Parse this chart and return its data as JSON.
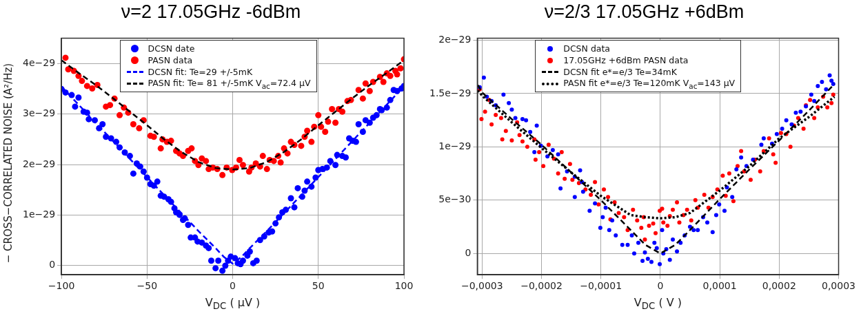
{
  "chart_data": [
    {
      "type": "scatter",
      "title": "ν=2  17.05GHz  -6dBm",
      "xlabel": "V$_{DC}$ ( µV )",
      "ylabel": "− CROSS−CORRELATED NOISE (A²/Hz)",
      "legend": "top left",
      "grid": true,
      "xlim": [
        -100,
        100
      ],
      "xticks": [
        {
          "value": -100,
          "label": "−100"
        },
        {
          "value": -50,
          "label": "−50"
        },
        0,
        50,
        100
      ],
      "ylim": [
        -1.9e-30,
        4.51e-29
      ],
      "yticks": [
        0,
        {
          "value": 1e-29,
          "label": "1e−29"
        },
        {
          "value": 2e-29,
          "label": "2e−29"
        },
        {
          "value": 3e-29,
          "label": "3e−29"
        },
        {
          "value": 4e-29,
          "label": "4e−29"
        }
      ],
      "series": [
        {
          "name": "DCSN date",
          "marker": "circle",
          "color": "#0000ff",
          "x": [
            -100,
            -97.6,
            -94,
            -92,
            -90,
            -87,
            -85,
            -84,
            -80.5,
            -78,
            -76,
            -74,
            -71,
            -68,
            -66,
            -63,
            -60,
            -58,
            -56,
            -54,
            -52,
            -50,
            -48,
            -46,
            -44,
            -42,
            -40,
            -37.5,
            -36,
            -34,
            -33,
            -31,
            -29,
            -28,
            -26,
            -24.5,
            -22,
            -20.5,
            -18,
            -15.6,
            -14,
            -12.5,
            -10,
            -8.4,
            -6,
            -4.3,
            -2.7,
            -1.1,
            1.4,
            3,
            4.6,
            6,
            8.6,
            10,
            12,
            14,
            16,
            18.4,
            21,
            23,
            25,
            27,
            29,
            31,
            34,
            36,
            38,
            40.6,
            42,
            43.5,
            46,
            48.4,
            50,
            52.4,
            55,
            57,
            60,
            61,
            64,
            66,
            68,
            70,
            72,
            73.5,
            76,
            77.6,
            80,
            82,
            84,
            86,
            87,
            90,
            92,
            94,
            96,
            98.6,
            100
          ],
          "values": [
            3.5e-29,
            3.43e-29,
            3.38e-29,
            3.15e-29,
            3.33e-29,
            3.05e-29,
            3.03e-29,
            2.9e-29,
            2.88e-29,
            2.72e-29,
            2.8e-29,
            2.55e-29,
            2.52e-29,
            2.45e-29,
            2.34e-29,
            2.24e-29,
            2.17e-29,
            1.82e-29,
            2.02e-29,
            1.96e-29,
            1.86e-29,
            1.74e-29,
            1.61e-29,
            1.58e-29,
            1.66e-29,
            1.38e-29,
            1.36e-29,
            1.31e-29,
            1.26e-29,
            1.13e-29,
            1.05e-29,
            1e-29,
            9e-30,
            9.3e-30,
            8e-30,
            5.5e-30,
            5.5e-30,
            4.7e-30,
            4.5e-30,
            3.9e-30,
            3.4e-30,
            9e-31,
            -6e-31,
            9e-31,
            -1.1e-30,
            -1e-31,
            9e-31,
            1.7e-30,
            1.4e-30,
            4e-31,
            2e-31,
            9e-31,
            1.9e-30,
            2.7e-30,
            4e-31,
            9e-31,
            5e-30,
            5.7e-30,
            6.5e-30,
            6.7e-30,
            8.3e-30,
            9.5e-30,
            1.05e-29,
            1.1e-29,
            1.33e-29,
            1.15e-29,
            1.53e-29,
            1.36e-29,
            1.48e-29,
            1.66e-29,
            1.56e-29,
            1.74e-29,
            1.89e-29,
            1.91e-29,
            1.94e-29,
            2.07e-29,
            1.99e-29,
            2.19e-29,
            2.17e-29,
            2.14e-29,
            2.52e-29,
            2.47e-29,
            2.45e-29,
            2.8e-29,
            2.65e-29,
            2.88e-29,
            2.83e-29,
            2.93e-29,
            2.98e-29,
            3.1e-29,
            3.08e-29,
            3.13e-29,
            3.28e-29,
            3.48e-29,
            3.46e-29,
            3.51e-29,
            3.56e-29
          ]
        },
        {
          "name": "PASN data",
          "marker": "circle",
          "color": "#ff0000",
          "x": [
            -97.6,
            -96,
            -92.7,
            -90,
            -88,
            -85,
            -82,
            -79,
            -74,
            -71.6,
            -69,
            -66,
            -63.5,
            -61,
            -58,
            -54.6,
            -52,
            -48,
            -46,
            -42,
            -41,
            -38.4,
            -36,
            -33,
            -31,
            -29,
            -26,
            -24,
            -22,
            -20,
            -18,
            -15.6,
            -14,
            -11.6,
            -9,
            -6,
            -3.5,
            -0.3,
            2,
            4,
            6,
            9.6,
            11,
            13.5,
            16,
            17.6,
            20,
            21.6,
            24,
            26.6,
            28,
            30,
            32,
            34,
            36,
            40,
            42,
            43.5,
            46,
            47.6,
            50,
            51.6,
            54,
            55.7,
            58,
            60,
            62,
            64,
            67,
            69,
            73.5,
            76,
            77.6,
            80,
            82,
            86,
            88,
            90,
            92,
            95,
            96,
            98,
            100
          ],
          "values": [
            4.12e-29,
            3.89e-29,
            3.86e-29,
            3.76e-29,
            3.66e-29,
            3.56e-29,
            3.51e-29,
            3.58e-29,
            3.15e-29,
            3.18e-29,
            3.31e-29,
            2.98e-29,
            3.13e-29,
            3.03e-29,
            2.8e-29,
            2.72e-29,
            2.88e-29,
            2.57e-29,
            2.55e-29,
            2.32e-29,
            2.5e-29,
            2.45e-29,
            2.47e-29,
            2.27e-29,
            2.22e-29,
            2.17e-29,
            2.27e-29,
            2.32e-29,
            2.07e-29,
            1.99e-29,
            2.12e-29,
            2.07e-29,
            1.91e-29,
            1.94e-29,
            1.91e-29,
            1.79e-29,
            1.94e-29,
            1.89e-29,
            1.94e-29,
            2.09e-29,
            1.99e-29,
            1.86e-29,
            1.94e-29,
            2.02e-29,
            1.96e-29,
            2.17e-29,
            1.91e-29,
            2.09e-29,
            2.07e-29,
            2.17e-29,
            2.04e-29,
            2.32e-29,
            2.22e-29,
            2.45e-29,
            2.39e-29,
            2.37e-29,
            2.55e-29,
            2.67e-29,
            2.45e-29,
            2.75e-29,
            2.98e-29,
            2.75e-29,
            2.65e-29,
            2.85e-29,
            3.1e-29,
            2.83e-29,
            3.1e-29,
            3.05e-29,
            3.26e-29,
            3.28e-29,
            3.48e-29,
            3.31e-29,
            3.61e-29,
            3.46e-29,
            3.64e-29,
            3.74e-29,
            3.64e-29,
            3.81e-29,
            3.76e-29,
            3.86e-29,
            3.79e-29,
            3.91e-29,
            4.09e-29
          ]
        },
        {
          "name": "DCSN fit: Te=29 +/-5mK",
          "type": "line",
          "marker": "none",
          "line_style": "dashed",
          "color": "#0000ff",
          "x": [
            -100,
            -80,
            -60,
            -40,
            -20,
            -10,
            -5,
            0,
            5,
            10,
            20,
            40,
            60,
            80,
            100
          ],
          "values": [
            3.55e-29,
            2.83e-29,
            2.11e-29,
            1.39e-29,
            6.8e-30,
            3.4e-30,
            1.6e-30,
            3e-31,
            1.6e-30,
            3.4e-30,
            6.8e-30,
            1.39e-29,
            2.11e-29,
            2.83e-29,
            3.55e-29
          ]
        },
        {
          "name": "PASN fit: Te= 81 +/-5mK V$_{ac}$=72.4 µV",
          "type": "line",
          "marker": "none",
          "line_style": "dashed",
          "color": "#000000",
          "x": [
            -100,
            -90,
            -80,
            -70,
            -60,
            -50,
            -40,
            -30,
            -20,
            -10,
            0,
            10,
            20,
            30,
            40,
            50,
            60,
            70,
            80,
            90,
            100
          ],
          "values": [
            4.07e-29,
            3.82e-29,
            3.58e-29,
            3.32e-29,
            3.05e-29,
            2.78e-29,
            2.5e-29,
            2.25e-29,
            2.05e-29,
            1.93e-29,
            1.9e-29,
            1.93e-29,
            2.05e-29,
            2.25e-29,
            2.5e-29,
            2.78e-29,
            3.05e-29,
            3.32e-29,
            3.58e-29,
            3.82e-29,
            4.07e-29
          ]
        }
      ]
    },
    {
      "type": "scatter",
      "title": "ν=2/3  17.05GHz  +6dBm",
      "xlabel": "V$_{DC}$ ( V )",
      "legend": "top left",
      "grid": true,
      "xlim": [
        -0.000308,
        0.0003
      ],
      "xticks": [
        {
          "value": -0.0003,
          "label": "−0,0003"
        },
        {
          "value": -0.0002,
          "label": "−0,0002"
        },
        {
          "value": -0.0001,
          "label": "−0,0001"
        },
        0,
        {
          "value": 0.0001,
          "label": "0,0001"
        },
        {
          "value": 0.0002,
          "label": "0,0002"
        },
        {
          "value": 0.0003,
          "label": "0,0003"
        }
      ],
      "ylim": [
        -2e-30,
        2.02e-29
      ],
      "yticks": [
        0,
        {
          "value": 5e-30,
          "label": "5e−30"
        },
        {
          "value": 1e-29,
          "label": "1e−29"
        },
        {
          "value": 1.5e-29,
          "label": "1.5e−29"
        },
        {
          "value": 2e-29,
          "label": "2e−29"
        }
      ],
      "series": [
        {
          "name": "DCSN data",
          "marker": "circle",
          "color": "#0000ff",
          "x": [
            -0.000304,
            -0.000297,
            -0.000292,
            -0.000284,
            -0.000277,
            -0.000264,
            -0.000255,
            -0.00025,
            -0.000244,
            -0.000232,
            -0.000226,
            -0.000219,
            -0.000208,
            -0.000212,
            -0.000201,
            -0.00019,
            -0.000181,
            -0.000172,
            -0.000168,
            -0.000157,
            -0.000144,
            -0.000135,
            -0.000132,
            -0.000144,
            -0.00013,
            -0.000119,
            -0.00011,
            -0.000101,
            -9.7e-05,
            -9.2e-05,
            -8.6e-05,
            -8.1e-05,
            -7.5e-05,
            -6.4e-05,
            -5.5e-05,
            -4.8e-05,
            -4.4e-05,
            -3.7e-05,
            -3e-05,
            -2.6e-05,
            -2.1e-05,
            -1.5e-05,
            -1e-05,
            -6e-06,
            -1e-06,
            3e-06,
            5e-06,
            1e-05,
            1.6e-05,
            2.1e-05,
            2.8e-05,
            3.4e-05,
            4.1e-05,
            5e-05,
            5.6e-05,
            6.3e-05,
            7.2e-05,
            7.9e-05,
            8.8e-05,
            9.4e-05,
            9.9e-05,
            0.000108,
            0.000112,
            0.000121,
            0.000128,
            0.000136,
            0.000145,
            0.000156,
            0.00017,
            0.000174,
            0.000188,
            0.000196,
            0.000205,
            0.000212,
            0.000221,
            0.000228,
            0.000236,
            0.000245,
            0.000254,
            0.000259,
            0.000265,
            0.000272,
            0.000279,
            0.000285,
            0.000288,
            0.000291
          ],
          "values": [
            1.56e-29,
            1.65e-29,
            1.47e-29,
            1.43e-29,
            1.39e-29,
            1.49e-29,
            1.41e-29,
            1.35e-29,
            1.27e-29,
            1.26e-29,
            1.25e-29,
            1.14e-29,
            1.2e-29,
            9.5e-30,
            1.01e-29,
            9.1e-30,
            9.7e-30,
            9.3e-30,
            6.1e-30,
            7.7e-30,
            7.2e-30,
            7.8e-30,
            6.7e-30,
            5.3e-30,
            5.8e-30,
            4e-30,
            4.7e-30,
            2.4e-30,
            3.4e-30,
            4.3e-30,
            2.2e-30,
            3.1e-30,
            1.7e-30,
            8e-31,
            8e-31,
            1.7e-30,
            0,
            1e-30,
            -7e-31,
            1e-31,
            -5e-31,
            -8e-31,
            1e-30,
            5e-31,
            -1e-30,
            2.2e-30,
            0,
            4e-31,
            -6e-31,
            1.3e-30,
            2e-31,
            1e-30,
            1.7e-30,
            2.5e-30,
            2.2e-30,
            2.2e-30,
            3.4e-30,
            2.9e-30,
            2e-30,
            3.6e-30,
            4.6e-30,
            4e-30,
            6.2e-30,
            5.3e-30,
            7.9e-30,
            9e-30,
            8.2e-30,
            8.8e-30,
            1.02e-29,
            1.08e-29,
            1.03e-29,
            1.12e-29,
            1.17e-29,
            1.25e-29,
            1.21e-29,
            1.32e-29,
            1.33e-29,
            1.38e-29,
            1.49e-29,
            1.43e-29,
            1.57e-29,
            1.61e-29,
            1.54e-29,
            1.67e-29,
            1.62e-29,
            1.59e-29
          ]
        },
        {
          "name": "17.05GHz +6dBm PASN data",
          "marker": "circle",
          "color": "#ff0000",
          "x": [
            -0.000304,
            -0.000301,
            -0.000295,
            -0.000288,
            -0.000284,
            -0.000277,
            -0.000268,
            -0.000266,
            -0.00026,
            -0.00025,
            -0.000241,
            -0.000237,
            -0.000232,
            -0.000224,
            -0.000212,
            -0.00021,
            -0.000204,
            -0.000197,
            -0.000188,
            -0.000179,
            -0.000172,
            -0.000166,
            -0.000161,
            -0.000152,
            -0.000148,
            -0.000137,
            -0.000126,
            -0.000117,
            -0.00011,
            -0.000104,
            -9.5e-05,
            -8.8e-05,
            -8.4e-05,
            -7.7e-05,
            -7e-05,
            -6.1e-05,
            -5.5e-05,
            -4.6e-05,
            -3.9e-05,
            -3.2e-05,
            -2.8e-05,
            -2.6e-05,
            -1.9e-05,
            -1.2e-05,
            -8e-06,
            -1e-06,
            3e-06,
            5e-06,
            1.2e-05,
            1.6e-05,
            2.1e-05,
            2.8e-05,
            3.2e-05,
            3.9e-05,
            4.5e-05,
            5.2e-05,
            5.9e-05,
            6.3e-05,
            7.4e-05,
            8.1e-05,
            8.8e-05,
            9.6e-05,
            0.000105,
            0.00011,
            0.000116,
            0.000123,
            0.00013,
            0.000136,
            0.000141,
            0.000152,
            0.000159,
            0.000168,
            0.000174,
            0.000183,
            0.00019,
            0.000194,
            0.000203,
            0.000212,
            0.000219,
            0.000225,
            0.000232,
            0.000241,
            0.000245,
            0.000252,
            0.000259,
            0.000265,
            0.000274,
            0.000281,
            0.000288,
            0.000291
          ],
          "values": [
            1.54e-29,
            1.26e-29,
            1.33e-29,
            1.44e-29,
            1.21e-29,
            1.3e-29,
            1.27e-29,
            1.07e-29,
            1.15e-29,
            1.06e-29,
            1.23e-29,
            1.11e-29,
            1.05e-29,
            1e-29,
            1.07e-29,
            8.8e-30,
            9.5e-30,
            8.2e-30,
            1.02e-29,
            8.9e-30,
            7.5e-30,
            9.5e-30,
            7e-30,
            8.4e-30,
            6.9e-30,
            6.6e-30,
            6e-30,
            5.5e-30,
            6.7e-30,
            4.6e-30,
            6e-30,
            5.3e-30,
            3.2e-30,
            4.8e-30,
            3.8e-30,
            3.4e-30,
            2.2e-30,
            4.1e-30,
            3.1e-30,
            2.4e-30,
            3.4e-30,
            1.3e-30,
            2.6e-30,
            2.8e-30,
            1.9e-30,
            4e-30,
            4.2e-30,
            2.9e-30,
            2.6e-30,
            3.5e-30,
            4.1e-30,
            4.8e-30,
            2.9e-30,
            3.6e-30,
            4.1e-30,
            3.1e-30,
            5e-30,
            4.3e-30,
            5.5e-30,
            4.3e-30,
            5.3e-30,
            6e-30,
            7.3e-30,
            5.4e-30,
            7.5e-30,
            4.9e-30,
            8.2e-30,
            9.6e-30,
            7.7e-30,
            6.9e-30,
            8.8e-30,
            7.7e-30,
            9.6e-30,
            1.08e-29,
            9.3e-30,
            8.5e-30,
            1.13e-29,
            1.12e-29,
            1e-29,
            1.2e-29,
            1.27e-29,
            1.17e-29,
            1.39e-29,
            1.44e-29,
            1.27e-29,
            1.37e-29,
            1.47e-29,
            1.37e-29,
            1.41e-29,
            1.49e-29
          ]
        },
        {
          "name": "DCSN fit e*=e/3 Te=34mK",
          "type": "line",
          "marker": "none",
          "line_style": "dashed",
          "color": "#000000",
          "x": [
            -0.000307,
            -0.0003,
            -0.00025,
            -0.0002,
            -0.00015,
            -0.0001,
            -5e-05,
            -2.5e-05,
            0,
            2.5e-05,
            5e-05,
            0.0001,
            0.00015,
            0.0002,
            0.00025,
            0.000293
          ],
          "values": [
            1.58e-29,
            1.51e-29,
            1.26e-29,
            1.02e-29,
            7.6e-30,
            5e-30,
            2.2e-30,
            8e-31,
            0,
            8e-31,
            2.2e-30,
            5.1e-30,
            7.9e-30,
            1.06e-29,
            1.34e-29,
            1.59e-29
          ]
        },
        {
          "name": "PASN fit e*=e/3 Te=120mK V$_{ac}$=143 µV",
          "type": "line",
          "marker": "none",
          "line_style": "dotted",
          "color": "#000000",
          "x": [
            -0.000307,
            -0.0003,
            -0.00025,
            -0.0002,
            -0.00015,
            -0.0001,
            -5e-05,
            -2.5e-05,
            0,
            2.5e-05,
            5e-05,
            0.0001,
            0.00015,
            0.0002,
            0.00025,
            0.000293
          ],
          "values": [
            1.53e-29,
            1.48e-29,
            1.23e-29,
            9.9e-30,
            7.6e-30,
            5.4e-30,
            3.6e-30,
            3.4e-30,
            3.3e-30,
            3.4e-30,
            3.8e-30,
            5.9e-30,
            8.2e-30,
            1.08e-29,
            1.28e-29,
            1.47e-29
          ]
        }
      ]
    }
  ]
}
